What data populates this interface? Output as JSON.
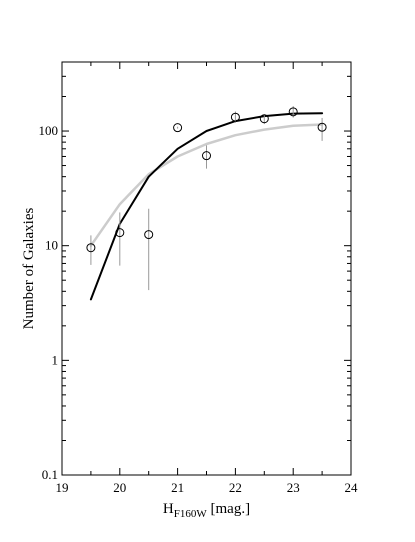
{
  "chart_data": {
    "type": "scatter",
    "title": "",
    "xlabel_main": "H",
    "xlabel_sub": "F160W",
    "xlabel_unit": " [mag.]",
    "ylabel": "Number of Galaxies",
    "xlim": [
      19,
      24
    ],
    "ylim": [
      0.1,
      400
    ],
    "yscale": "log",
    "grid": false,
    "x_ticks": [
      {
        "value": 19,
        "label": "19"
      },
      {
        "value": 20,
        "label": "20"
      },
      {
        "value": 21,
        "label": "21"
      },
      {
        "value": 22,
        "label": "22"
      },
      {
        "value": 23,
        "label": "23"
      },
      {
        "value": 24,
        "label": "24"
      }
    ],
    "y_ticks": [
      {
        "value": 0.1,
        "label": "0.1"
      },
      {
        "value": 1,
        "label": "1"
      },
      {
        "value": 10,
        "label": "10"
      },
      {
        "value": 100,
        "label": "100"
      }
    ],
    "series": [
      {
        "kind": "points",
        "marker": "open-circle",
        "color": "#000000",
        "errorbar_color": "#999999",
        "points": [
          {
            "x": 19.5,
            "y": 9.6,
            "ylo": 6.8,
            "yhi": 12.3
          },
          {
            "x": 20.0,
            "y": 13.0,
            "ylo": 6.7,
            "yhi": 19.5
          },
          {
            "x": 20.5,
            "y": 12.5,
            "ylo": 4.1,
            "yhi": 21.0
          },
          {
            "x": 21.0,
            "y": 107,
            "ylo": 105,
            "yhi": 109
          },
          {
            "x": 21.5,
            "y": 61,
            "ylo": 47,
            "yhi": 75
          },
          {
            "x": 22.0,
            "y": 132,
            "ylo": 118,
            "yhi": 148
          },
          {
            "x": 22.5,
            "y": 128,
            "ylo": 115,
            "yhi": 140
          },
          {
            "x": 23.0,
            "y": 147,
            "ylo": 131,
            "yhi": 165
          },
          {
            "x": 23.5,
            "y": 108,
            "ylo": 82,
            "yhi": 130
          }
        ]
      },
      {
        "kind": "line",
        "color": "#000000",
        "width": 2,
        "x": [
          19.5,
          20.0,
          20.5,
          21.0,
          21.5,
          22.0,
          22.5,
          23.0,
          23.5
        ],
        "y": [
          3.4,
          15.5,
          40,
          70,
          100,
          122,
          135,
          142,
          143
        ]
      },
      {
        "kind": "line",
        "color": "#cccccc",
        "width": 2.5,
        "x": [
          19.5,
          20.0,
          20.5,
          21.0,
          21.5,
          22.0,
          22.5,
          23.0,
          23.5
        ],
        "y": [
          10,
          23,
          42,
          60,
          77,
          92,
          103,
          111,
          114
        ]
      }
    ]
  }
}
